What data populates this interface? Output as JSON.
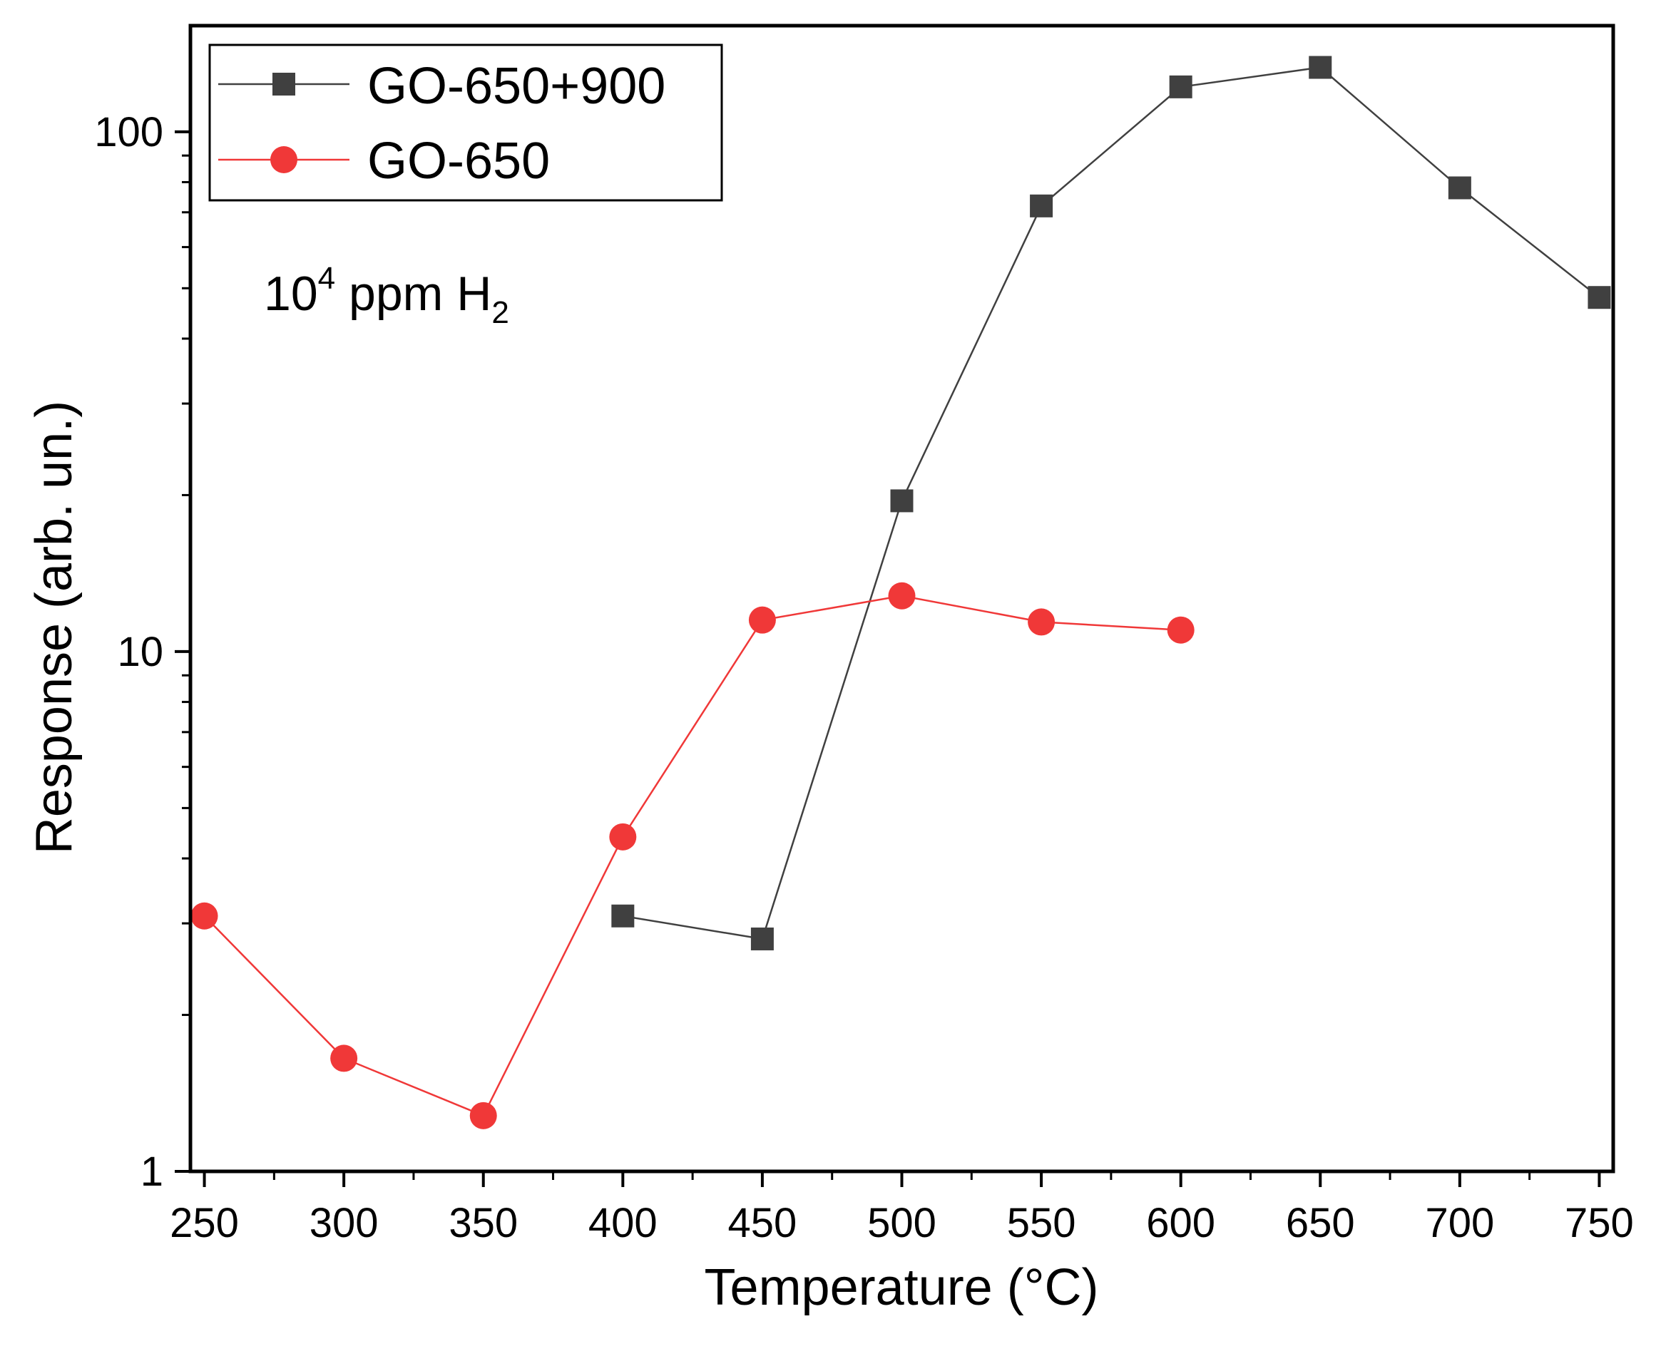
{
  "chart_data": {
    "type": "line",
    "xlabel": "Temperature (°C)",
    "ylabel": "Response (arb. un.)",
    "xlim": [
      245,
      755
    ],
    "ylim": [
      1,
      160
    ],
    "yscale": "log",
    "x_ticks": [
      250,
      300,
      350,
      400,
      450,
      500,
      550,
      600,
      650,
      700,
      750
    ],
    "x_tick_labels": [
      "250",
      "300",
      "350",
      "400",
      "450",
      "500",
      "550",
      "600",
      "650",
      "700",
      "750"
    ],
    "y_ticks": [
      1,
      10,
      100
    ],
    "y_tick_labels": [
      "1",
      "10",
      "100"
    ],
    "annotation": {
      "base": "10",
      "exponent": "4",
      "middle": " ppm H",
      "subscript": "2"
    },
    "legend_position": "top-left",
    "series": [
      {
        "name": "GO-650+900",
        "marker": "square",
        "color": "#404040",
        "x": [
          400,
          450,
          500,
          550,
          600,
          650,
          700,
          750
        ],
        "y": [
          3.1,
          2.8,
          19.5,
          72,
          122,
          133,
          78,
          48
        ]
      },
      {
        "name": "GO-650",
        "marker": "circle",
        "color": "#f03838",
        "x": [
          250,
          300,
          350,
          400,
          450,
          500,
          550,
          600
        ],
        "y": [
          3.1,
          1.65,
          1.28,
          4.4,
          11.5,
          12.8,
          11.4,
          11.0
        ]
      }
    ]
  }
}
